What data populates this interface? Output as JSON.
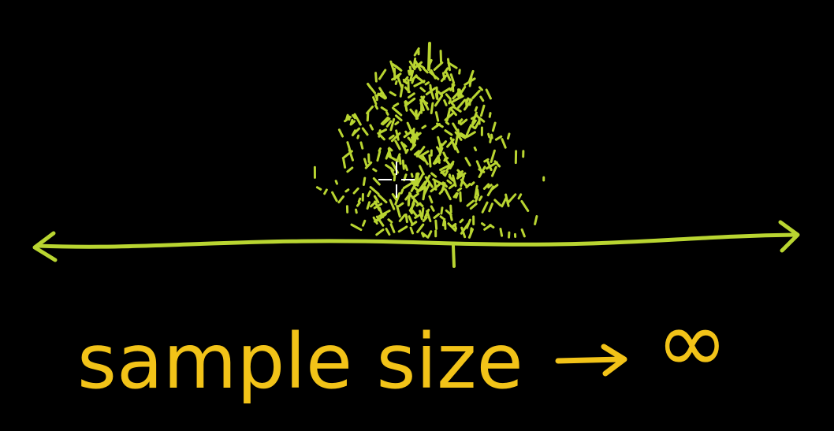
{
  "caption": {
    "text": "sample size",
    "limit": "∞"
  }
}
